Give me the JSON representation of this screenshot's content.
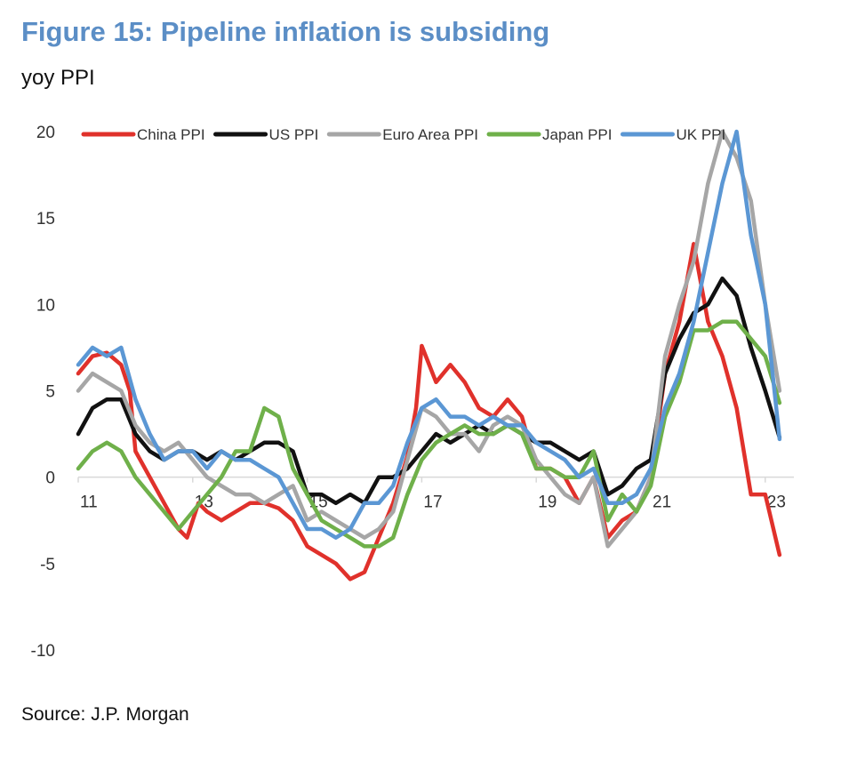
{
  "title": "Figure 15: Pipeline inflation is subsiding",
  "subtitle": "yoy PPI",
  "source": "Source: J.P. Morgan",
  "chart_data": {
    "type": "line",
    "title": "Figure 15: Pipeline inflation is subsiding",
    "subtitle": "yoy PPI",
    "xlabel": "",
    "ylabel": "",
    "xlim": [
      2011.0,
      2023.5
    ],
    "ylim": [
      -10,
      20
    ],
    "y_ticks": [
      20,
      15,
      10,
      5,
      0,
      -5,
      -10
    ],
    "x_ticks": [
      {
        "value": 2011,
        "label": "11"
      },
      {
        "value": 2013,
        "label": "13"
      },
      {
        "value": 2015,
        "label": "15"
      },
      {
        "value": 2017,
        "label": "17"
      },
      {
        "value": 2019,
        "label": "19"
      },
      {
        "value": 2021,
        "label": "21"
      },
      {
        "value": 2023,
        "label": "23"
      }
    ],
    "legend_position": "top",
    "grid": false,
    "series": [
      {
        "name": "China PPI",
        "color": "#e0312b",
        "points": [
          [
            2011.0,
            6.0
          ],
          [
            2011.25,
            7.0
          ],
          [
            2011.5,
            7.2
          ],
          [
            2011.75,
            6.5
          ],
          [
            2011.9,
            5.0
          ],
          [
            2012.0,
            1.5
          ],
          [
            2012.25,
            0
          ],
          [
            2012.5,
            -1.5
          ],
          [
            2012.75,
            -3.0
          ],
          [
            2012.9,
            -3.5
          ],
          [
            2013.0,
            -2.5
          ],
          [
            2013.1,
            -1.5
          ],
          [
            2013.25,
            -2.0
          ],
          [
            2013.5,
            -2.5
          ],
          [
            2013.75,
            -2.0
          ],
          [
            2014.0,
            -1.5
          ],
          [
            2014.25,
            -1.5
          ],
          [
            2014.5,
            -1.8
          ],
          [
            2014.75,
            -2.5
          ],
          [
            2015.0,
            -4.0
          ],
          [
            2015.25,
            -4.5
          ],
          [
            2015.5,
            -5.0
          ],
          [
            2015.75,
            -5.9
          ],
          [
            2016.0,
            -5.5
          ],
          [
            2016.25,
            -3.5
          ],
          [
            2016.5,
            -1.5
          ],
          [
            2016.75,
            1.2
          ],
          [
            2016.9,
            4.0
          ],
          [
            2017.0,
            7.6
          ],
          [
            2017.25,
            5.5
          ],
          [
            2017.5,
            6.5
          ],
          [
            2017.75,
            5.5
          ],
          [
            2018.0,
            4.0
          ],
          [
            2018.25,
            3.5
          ],
          [
            2018.5,
            4.5
          ],
          [
            2018.75,
            3.5
          ],
          [
            2019.0,
            0.5
          ],
          [
            2019.25,
            0.5
          ],
          [
            2019.5,
            0
          ],
          [
            2019.75,
            -1.5
          ],
          [
            2020.0,
            0
          ],
          [
            2020.25,
            -3.5
          ],
          [
            2020.5,
            -2.5
          ],
          [
            2020.75,
            -2.0
          ],
          [
            2021.0,
            0
          ],
          [
            2021.25,
            6.0
          ],
          [
            2021.5,
            9.0
          ],
          [
            2021.75,
            13.5
          ],
          [
            2022.0,
            9.0
          ],
          [
            2022.25,
            7.0
          ],
          [
            2022.5,
            4.0
          ],
          [
            2022.75,
            -1.0
          ],
          [
            2023.0,
            -1.0
          ],
          [
            2023.25,
            -4.5
          ]
        ]
      },
      {
        "name": "US PPI",
        "color": "#111111",
        "points": [
          [
            2011.0,
            2.5
          ],
          [
            2011.25,
            4.0
          ],
          [
            2011.5,
            4.5
          ],
          [
            2011.75,
            4.5
          ],
          [
            2012.0,
            2.5
          ],
          [
            2012.25,
            1.5
          ],
          [
            2012.5,
            1.0
          ],
          [
            2012.75,
            1.5
          ],
          [
            2013.0,
            1.5
          ],
          [
            2013.25,
            1.0
          ],
          [
            2013.5,
            1.5
          ],
          [
            2013.75,
            1.0
          ],
          [
            2014.0,
            1.5
          ],
          [
            2014.25,
            2.0
          ],
          [
            2014.5,
            2.0
          ],
          [
            2014.75,
            1.5
          ],
          [
            2015.0,
            -1.0
          ],
          [
            2015.25,
            -1.0
          ],
          [
            2015.5,
            -1.5
          ],
          [
            2015.75,
            -1.0
          ],
          [
            2016.0,
            -1.5
          ],
          [
            2016.25,
            0
          ],
          [
            2016.5,
            0
          ],
          [
            2016.75,
            0.5
          ],
          [
            2017.0,
            1.5
          ],
          [
            2017.25,
            2.5
          ],
          [
            2017.5,
            2.0
          ],
          [
            2017.75,
            2.5
          ],
          [
            2018.0,
            3.0
          ],
          [
            2018.25,
            2.5
          ],
          [
            2018.5,
            3.0
          ],
          [
            2018.75,
            2.5
          ],
          [
            2019.0,
            2.0
          ],
          [
            2019.25,
            2.0
          ],
          [
            2019.5,
            1.5
          ],
          [
            2019.75,
            1.0
          ],
          [
            2020.0,
            1.5
          ],
          [
            2020.25,
            -1.0
          ],
          [
            2020.5,
            -0.5
          ],
          [
            2020.75,
            0.5
          ],
          [
            2021.0,
            1.0
          ],
          [
            2021.25,
            6.0
          ],
          [
            2021.5,
            8.0
          ],
          [
            2021.75,
            9.5
          ],
          [
            2022.0,
            10.0
          ],
          [
            2022.25,
            11.5
          ],
          [
            2022.5,
            10.5
          ],
          [
            2022.75,
            7.5
          ],
          [
            2023.0,
            5.0
          ],
          [
            2023.25,
            2.3
          ]
        ]
      },
      {
        "name": "Euro Area PPI",
        "color": "#a6a6a6",
        "points": [
          [
            2011.0,
            5.0
          ],
          [
            2011.25,
            6.0
          ],
          [
            2011.5,
            5.5
          ],
          [
            2011.75,
            5.0
          ],
          [
            2012.0,
            3.0
          ],
          [
            2012.25,
            2.0
          ],
          [
            2012.5,
            1.5
          ],
          [
            2012.75,
            2.0
          ],
          [
            2013.0,
            1.0
          ],
          [
            2013.25,
            0
          ],
          [
            2013.5,
            -0.5
          ],
          [
            2013.75,
            -1.0
          ],
          [
            2014.0,
            -1.0
          ],
          [
            2014.25,
            -1.5
          ],
          [
            2014.5,
            -1.0
          ],
          [
            2014.75,
            -0.5
          ],
          [
            2015.0,
            -2.5
          ],
          [
            2015.25,
            -2.0
          ],
          [
            2015.5,
            -2.5
          ],
          [
            2015.75,
            -3.0
          ],
          [
            2016.0,
            -3.5
          ],
          [
            2016.25,
            -3.0
          ],
          [
            2016.5,
            -2.0
          ],
          [
            2016.75,
            1.0
          ],
          [
            2017.0,
            4.0
          ],
          [
            2017.25,
            3.5
          ],
          [
            2017.5,
            2.5
          ],
          [
            2017.75,
            2.5
          ],
          [
            2018.0,
            1.5
          ],
          [
            2018.25,
            3.0
          ],
          [
            2018.5,
            3.5
          ],
          [
            2018.75,
            3.0
          ],
          [
            2019.0,
            1.0
          ],
          [
            2019.25,
            0
          ],
          [
            2019.5,
            -1.0
          ],
          [
            2019.75,
            -1.5
          ],
          [
            2020.0,
            0
          ],
          [
            2020.25,
            -4.0
          ],
          [
            2020.5,
            -3.0
          ],
          [
            2020.75,
            -2.0
          ],
          [
            2021.0,
            0
          ],
          [
            2021.25,
            7.0
          ],
          [
            2021.5,
            10.0
          ],
          [
            2021.75,
            12.5
          ],
          [
            2022.0,
            17.0
          ],
          [
            2022.25,
            20.0
          ],
          [
            2022.5,
            18.5
          ],
          [
            2022.75,
            16.0
          ],
          [
            2023.0,
            10.0
          ],
          [
            2023.25,
            5.0
          ]
        ]
      },
      {
        "name": "Japan PPI",
        "color": "#6fb04a",
        "points": [
          [
            2011.0,
            0.5
          ],
          [
            2011.25,
            1.5
          ],
          [
            2011.5,
            2.0
          ],
          [
            2011.75,
            1.5
          ],
          [
            2012.0,
            0
          ],
          [
            2012.25,
            -1.0
          ],
          [
            2012.5,
            -2.0
          ],
          [
            2012.75,
            -3.0
          ],
          [
            2013.0,
            -2.0
          ],
          [
            2013.25,
            -1.0
          ],
          [
            2013.5,
            0
          ],
          [
            2013.75,
            1.5
          ],
          [
            2014.0,
            1.5
          ],
          [
            2014.25,
            4.0
          ],
          [
            2014.5,
            3.5
          ],
          [
            2014.75,
            0.5
          ],
          [
            2015.0,
            -1.0
          ],
          [
            2015.25,
            -2.5
          ],
          [
            2015.5,
            -3.0
          ],
          [
            2015.75,
            -3.5
          ],
          [
            2016.0,
            -4.0
          ],
          [
            2016.25,
            -4.0
          ],
          [
            2016.5,
            -3.5
          ],
          [
            2016.75,
            -1.0
          ],
          [
            2017.0,
            1.0
          ],
          [
            2017.25,
            2.0
          ],
          [
            2017.5,
            2.5
          ],
          [
            2017.75,
            3.0
          ],
          [
            2018.0,
            2.5
          ],
          [
            2018.25,
            2.5
          ],
          [
            2018.5,
            3.0
          ],
          [
            2018.75,
            2.5
          ],
          [
            2019.0,
            0.5
          ],
          [
            2019.25,
            0.5
          ],
          [
            2019.5,
            0
          ],
          [
            2019.75,
            0
          ],
          [
            2020.0,
            1.5
          ],
          [
            2020.25,
            -2.5
          ],
          [
            2020.5,
            -1.0
          ],
          [
            2020.75,
            -2.0
          ],
          [
            2021.0,
            -0.5
          ],
          [
            2021.25,
            3.5
          ],
          [
            2021.5,
            5.5
          ],
          [
            2021.75,
            8.5
          ],
          [
            2022.0,
            8.5
          ],
          [
            2022.25,
            9.0
          ],
          [
            2022.5,
            9.0
          ],
          [
            2022.75,
            8.0
          ],
          [
            2023.0,
            7.0
          ],
          [
            2023.25,
            4.3
          ]
        ]
      },
      {
        "name": "UK PPI",
        "color": "#5b97d4",
        "points": [
          [
            2011.0,
            6.5
          ],
          [
            2011.25,
            7.5
          ],
          [
            2011.5,
            7.0
          ],
          [
            2011.75,
            7.5
          ],
          [
            2012.0,
            4.5
          ],
          [
            2012.25,
            2.5
          ],
          [
            2012.5,
            1.0
          ],
          [
            2012.75,
            1.5
          ],
          [
            2013.0,
            1.5
          ],
          [
            2013.25,
            0.5
          ],
          [
            2013.5,
            1.5
          ],
          [
            2013.75,
            1.0
          ],
          [
            2014.0,
            1.0
          ],
          [
            2014.25,
            0.5
          ],
          [
            2014.5,
            0
          ],
          [
            2014.75,
            -1.5
          ],
          [
            2015.0,
            -3.0
          ],
          [
            2015.25,
            -3.0
          ],
          [
            2015.5,
            -3.5
          ],
          [
            2015.75,
            -3.0
          ],
          [
            2016.0,
            -1.5
          ],
          [
            2016.25,
            -1.5
          ],
          [
            2016.5,
            -0.5
          ],
          [
            2016.75,
            2.0
          ],
          [
            2017.0,
            4.0
          ],
          [
            2017.25,
            4.5
          ],
          [
            2017.5,
            3.5
          ],
          [
            2017.75,
            3.5
          ],
          [
            2018.0,
            3.0
          ],
          [
            2018.25,
            3.5
          ],
          [
            2018.5,
            3.0
          ],
          [
            2018.75,
            3.0
          ],
          [
            2019.0,
            2.0
          ],
          [
            2019.25,
            1.5
          ],
          [
            2019.5,
            1.0
          ],
          [
            2019.75,
            0
          ],
          [
            2020.0,
            0.5
          ],
          [
            2020.25,
            -1.5
          ],
          [
            2020.5,
            -1.5
          ],
          [
            2020.75,
            -1.0
          ],
          [
            2021.0,
            0.5
          ],
          [
            2021.25,
            4.0
          ],
          [
            2021.5,
            6.0
          ],
          [
            2021.75,
            9.0
          ],
          [
            2022.0,
            13.0
          ],
          [
            2022.25,
            17.0
          ],
          [
            2022.5,
            20.0
          ],
          [
            2022.75,
            14.0
          ],
          [
            2023.0,
            10.0
          ],
          [
            2023.25,
            2.2
          ]
        ]
      }
    ]
  }
}
